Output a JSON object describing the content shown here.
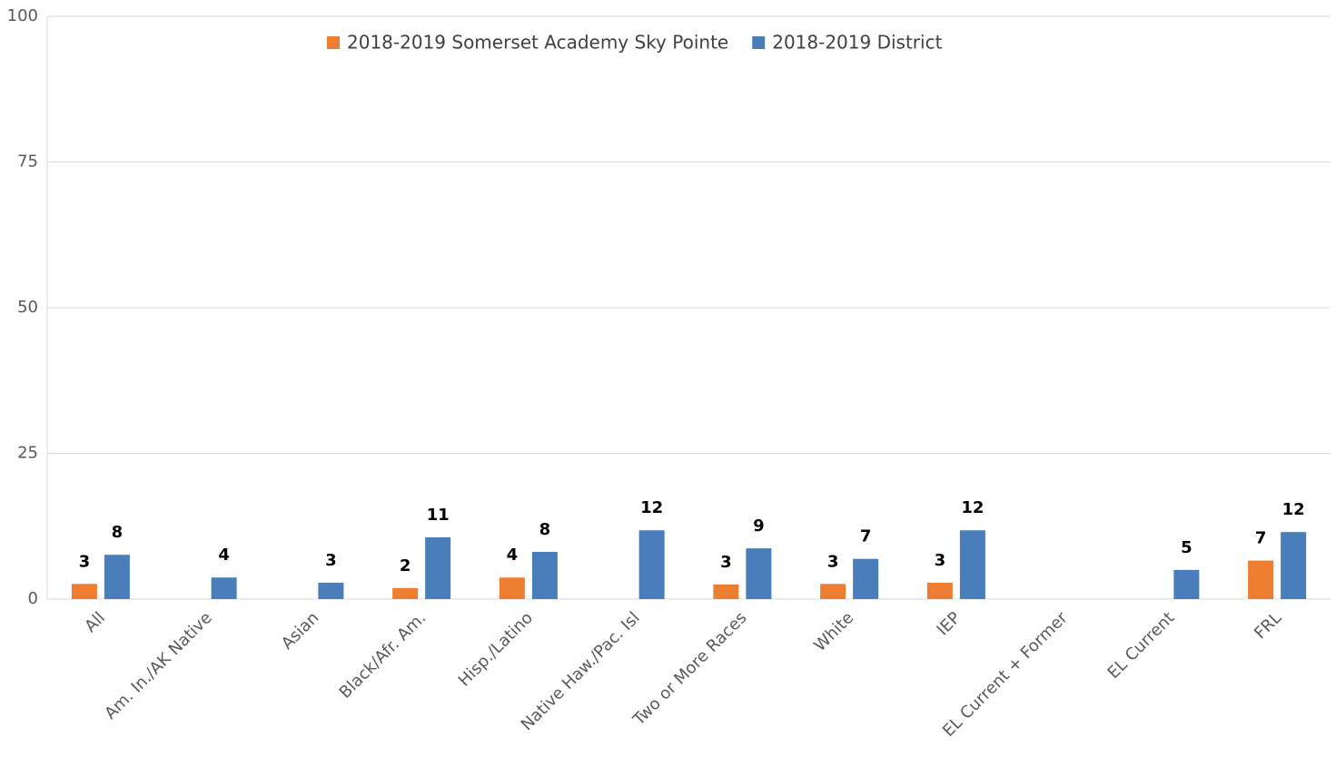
{
  "chart_data": {
    "type": "bar",
    "categories": [
      "All",
      "Am. In./AK Native",
      "Asian",
      "Black/Afr. Am.",
      "Hisp./Latino",
      "Native Haw./Pac. Isl",
      "Two or More Races",
      "White",
      "IEP",
      "EL Current + Former",
      "EL Current",
      "FRL"
    ],
    "series": [
      {
        "name": "2018-2019 Somerset Academy Sky Pointe",
        "color": "#ed7d31",
        "values": [
          2.6,
          null,
          null,
          1.9,
          3.7,
          null,
          2.5,
          2.6,
          2.8,
          null,
          null,
          6.6
        ],
        "value_labels": [
          "3",
          null,
          null,
          "2",
          "4",
          null,
          "3",
          "3",
          "3",
          null,
          null,
          "7"
        ]
      },
      {
        "name": "2018-2019 District",
        "color": "#4a7ebb",
        "values": [
          7.6,
          3.7,
          2.8,
          10.6,
          8.1,
          11.8,
          8.7,
          6.9,
          11.8,
          null,
          5.0,
          11.5
        ],
        "value_labels": [
          "8",
          "4",
          "3",
          "11",
          "8",
          "12",
          "9",
          "7",
          "12",
          null,
          "5",
          "12"
        ]
      }
    ],
    "ylim": [
      0,
      100
    ],
    "yticks": [
      0,
      25,
      50,
      75,
      100
    ],
    "grid": true,
    "legend": "top"
  }
}
